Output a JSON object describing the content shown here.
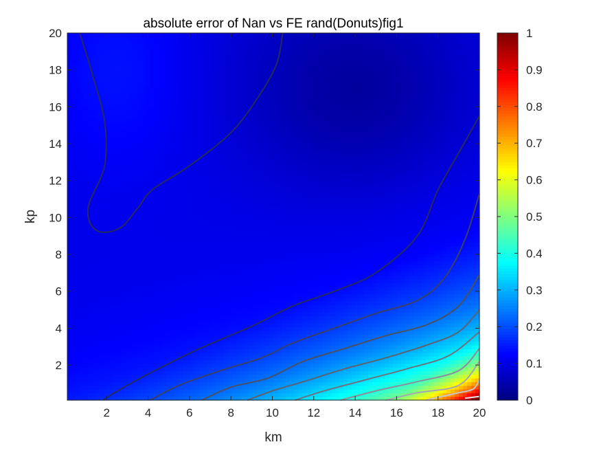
{
  "chart_data": {
    "type": "heatmap",
    "title": "absolute error of Nan vs FE rand(Donuts)fig1",
    "xlabel": "km",
    "ylabel": "kp",
    "xlim": [
      0.1,
      20
    ],
    "ylim": [
      0.1,
      20
    ],
    "x_ticks": [
      "2",
      "4",
      "6",
      "8",
      "10",
      "12",
      "14",
      "16",
      "18",
      "20"
    ],
    "y_ticks": [
      "2",
      "4",
      "6",
      "8",
      "10",
      "12",
      "14",
      "16",
      "18",
      "20"
    ],
    "colorbar": {
      "colormap": "jet",
      "limits": [
        0,
        1
      ],
      "ticks": [
        "0",
        "0.1",
        "0.2",
        "0.3",
        "0.4",
        "0.5",
        "0.6",
        "0.7",
        "0.8",
        "0.9",
        "1"
      ]
    },
    "contour_lines": [
      {
        "level": 0.1,
        "color": "#262a5c",
        "points": [
          [
            0.7,
            20
          ],
          [
            1.3,
            17.8
          ],
          [
            1.9,
            15.2
          ],
          [
            1.9,
            12.8
          ],
          [
            1.1,
            10.5
          ],
          [
            1.5,
            9.3
          ],
          [
            2.6,
            9.4
          ],
          [
            3.5,
            10.5
          ],
          [
            4.2,
            11.5
          ],
          [
            6,
            12.8
          ],
          [
            8,
            14.6
          ],
          [
            9.3,
            16.5
          ],
          [
            10.2,
            18.3
          ],
          [
            10.5,
            20
          ]
        ],
        "note": ""
      },
      {
        "level": 0.1,
        "color": "#262a5c",
        "points": [
          [
            1.8,
            0.1
          ],
          [
            3,
            0.9
          ],
          [
            4.5,
            1.8
          ],
          [
            6.5,
            2.9
          ],
          [
            9,
            4.1
          ],
          [
            11,
            5.2
          ],
          [
            13,
            6
          ],
          [
            15,
            7
          ],
          [
            17,
            9
          ],
          [
            18,
            11.5
          ],
          [
            19,
            13.5
          ],
          [
            20,
            15.5
          ]
        ]
      },
      {
        "level": 0.2,
        "color": "#3b3f64",
        "points": [
          [
            4.1,
            0.1
          ],
          [
            5.5,
            0.9
          ],
          [
            7.5,
            1.7
          ],
          [
            9.5,
            2.4
          ],
          [
            11,
            3.2
          ],
          [
            13,
            4
          ],
          [
            15,
            4.8
          ],
          [
            17,
            5.5
          ],
          [
            18.3,
            6.7
          ],
          [
            19.3,
            8.8
          ],
          [
            20,
            11.3
          ]
        ]
      },
      {
        "level": 0.3,
        "color": "#4b5060",
        "points": [
          [
            6.6,
            0.1
          ],
          [
            8,
            0.8
          ],
          [
            9.8,
            1.3
          ],
          [
            11.5,
            2.2
          ],
          [
            13.5,
            2.9
          ],
          [
            15.5,
            3.6
          ],
          [
            17.5,
            4.2
          ],
          [
            19,
            5.2
          ],
          [
            20,
            6.9
          ]
        ]
      },
      {
        "level": 0.4,
        "color": "#5c6270",
        "points": [
          [
            8.8,
            0.1
          ],
          [
            10,
            0.6
          ],
          [
            11.5,
            1.1
          ],
          [
            13.5,
            1.8
          ],
          [
            15.5,
            2.4
          ],
          [
            17.5,
            3.1
          ],
          [
            19,
            3.8
          ],
          [
            20,
            5
          ]
        ]
      },
      {
        "level": 0.5,
        "color": "#6d7280",
        "points": [
          [
            11.1,
            0.1
          ],
          [
            12.5,
            0.6
          ],
          [
            14.5,
            1.2
          ],
          [
            16.5,
            1.8
          ],
          [
            18.5,
            2.5
          ],
          [
            20,
            3.8
          ]
        ]
      },
      {
        "level": 0.6,
        "color": "#8a8e9a",
        "points": [
          [
            13.3,
            0.1
          ],
          [
            15,
            0.6
          ],
          [
            17,
            1.1
          ],
          [
            19,
            1.7
          ],
          [
            20,
            2.9
          ]
        ]
      },
      {
        "level": 0.7,
        "color": "#a3a7b0",
        "points": [
          [
            15.5,
            0.1
          ],
          [
            17,
            0.5
          ],
          [
            19,
            0.9
          ],
          [
            20,
            2.2
          ]
        ]
      },
      {
        "level": 0.8,
        "color": "#c3c6cc",
        "points": [
          [
            17.4,
            0.1
          ],
          [
            19,
            0.5
          ],
          [
            19.7,
            0.7
          ],
          [
            20,
            1.2
          ]
        ]
      },
      {
        "level": 0.9,
        "color": "#e4e6ea",
        "points": [
          [
            19.3,
            0.2
          ],
          [
            20,
            0.3
          ]
        ]
      }
    ]
  }
}
